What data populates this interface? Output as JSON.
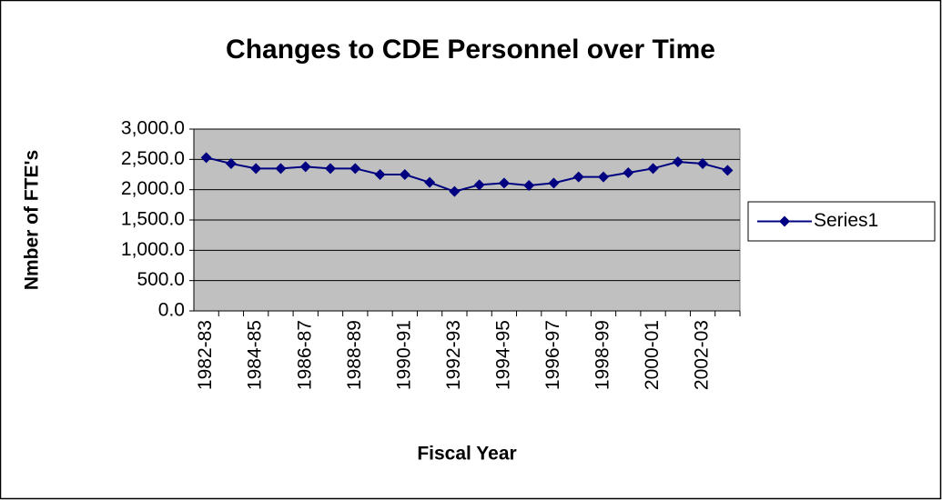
{
  "chart_data": {
    "type": "line",
    "title": "Changes to CDE Personnel over Time",
    "y_label": "Nmber of FTE's",
    "x_label": "Fiscal Year",
    "categories": [
      "1982-83",
      null,
      "1984-85",
      null,
      "1986-87",
      null,
      "1988-89",
      null,
      "1990-91",
      null,
      "1992-93",
      null,
      "1994-95",
      null,
      "1996-97",
      null,
      "1998-99",
      null,
      "2000-01",
      null,
      "2002-03",
      null
    ],
    "series": [
      {
        "name": "Series1",
        "color": "#000080",
        "values": [
          2530,
          2430,
          2350,
          2350,
          2380,
          2350,
          2350,
          2250,
          2250,
          2120,
          1970,
          2080,
          2110,
          2070,
          2110,
          2210,
          2210,
          2280,
          2350,
          2460,
          2430,
          2320
        ]
      }
    ],
    "ylim": [
      0,
      3000
    ],
    "yticks": [
      {
        "value": 0,
        "label": "0.0"
      },
      {
        "value": 500,
        "label": "500.0"
      },
      {
        "value": 1000,
        "label": "1,000.0"
      },
      {
        "value": 1500,
        "label": "1,500.0"
      },
      {
        "value": 2000,
        "label": "2,000.0"
      },
      {
        "value": 2500,
        "label": "2,500.0"
      },
      {
        "value": 3000,
        "label": "3,000.0"
      }
    ],
    "grid": true,
    "plot_background": "#c0c0c0",
    "legend": "right"
  }
}
